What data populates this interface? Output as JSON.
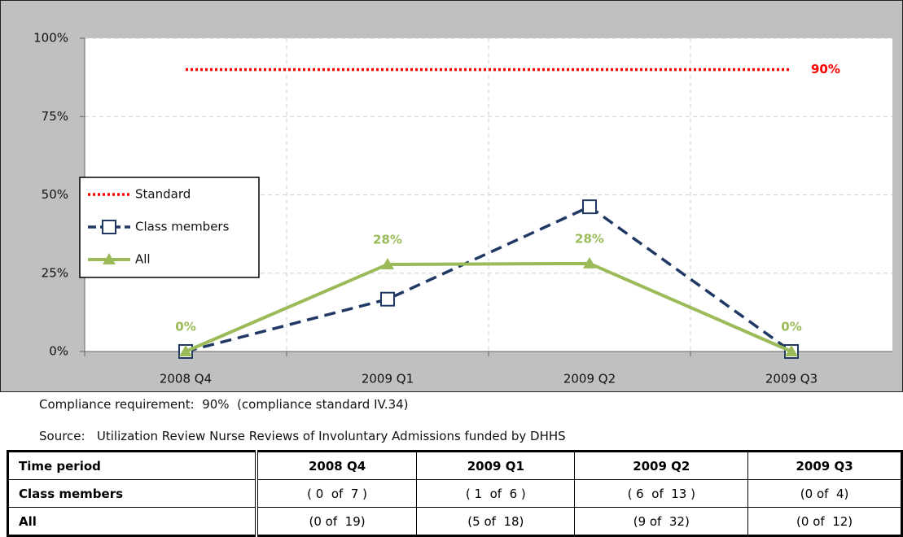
{
  "chart_data": {
    "type": "line",
    "categories": [
      "2008 Q4",
      "2009 Q1",
      "2009 Q2",
      "2009 Q3"
    ],
    "series": [
      {
        "name": "Standard",
        "color": "#ff0000",
        "style": "dotted",
        "values": [
          90,
          90,
          90,
          90
        ],
        "value_labels": [
          null,
          null,
          null,
          "90%"
        ]
      },
      {
        "name": "Class members",
        "color": "#1f3864",
        "style": "dashed",
        "marker": "square",
        "values": [
          0,
          16.7,
          46.2,
          0
        ]
      },
      {
        "name": "All",
        "color": "#9bbb59",
        "style": "solid",
        "marker": "triangle",
        "values": [
          0,
          27.8,
          28.1,
          0
        ],
        "value_labels": [
          "0%",
          "28%",
          "28%",
          "0%"
        ]
      }
    ],
    "ylim": [
      0,
      100
    ],
    "yticks": [
      {
        "value": 0,
        "label": "0%"
      },
      {
        "value": 25,
        "label": "25%"
      },
      {
        "value": 50,
        "label": "50%"
      },
      {
        "value": 75,
        "label": "75%"
      },
      {
        "value": 100,
        "label": "100%"
      }
    ],
    "grid": true,
    "legend": "left"
  },
  "notes": [
    "Compliance requirement:  90%  (compliance standard IV.34)",
    "Source:   Utilization Review Nurse Reviews of Involuntary Admissions funded by DHHS"
  ],
  "table": {
    "header": [
      "Time period",
      "2008 Q4",
      "2009 Q1",
      "2009 Q2",
      "2009 Q3"
    ],
    "rows": [
      [
        "Class members",
        "( 0  of  7 )",
        "( 1  of  6 )",
        "( 6  of  13 )",
        "(0 of  4)"
      ],
      [
        "All",
        "(0 of  19)",
        "(5 of  18)",
        "(9 of  32)",
        "(0 of  12)"
      ]
    ]
  }
}
